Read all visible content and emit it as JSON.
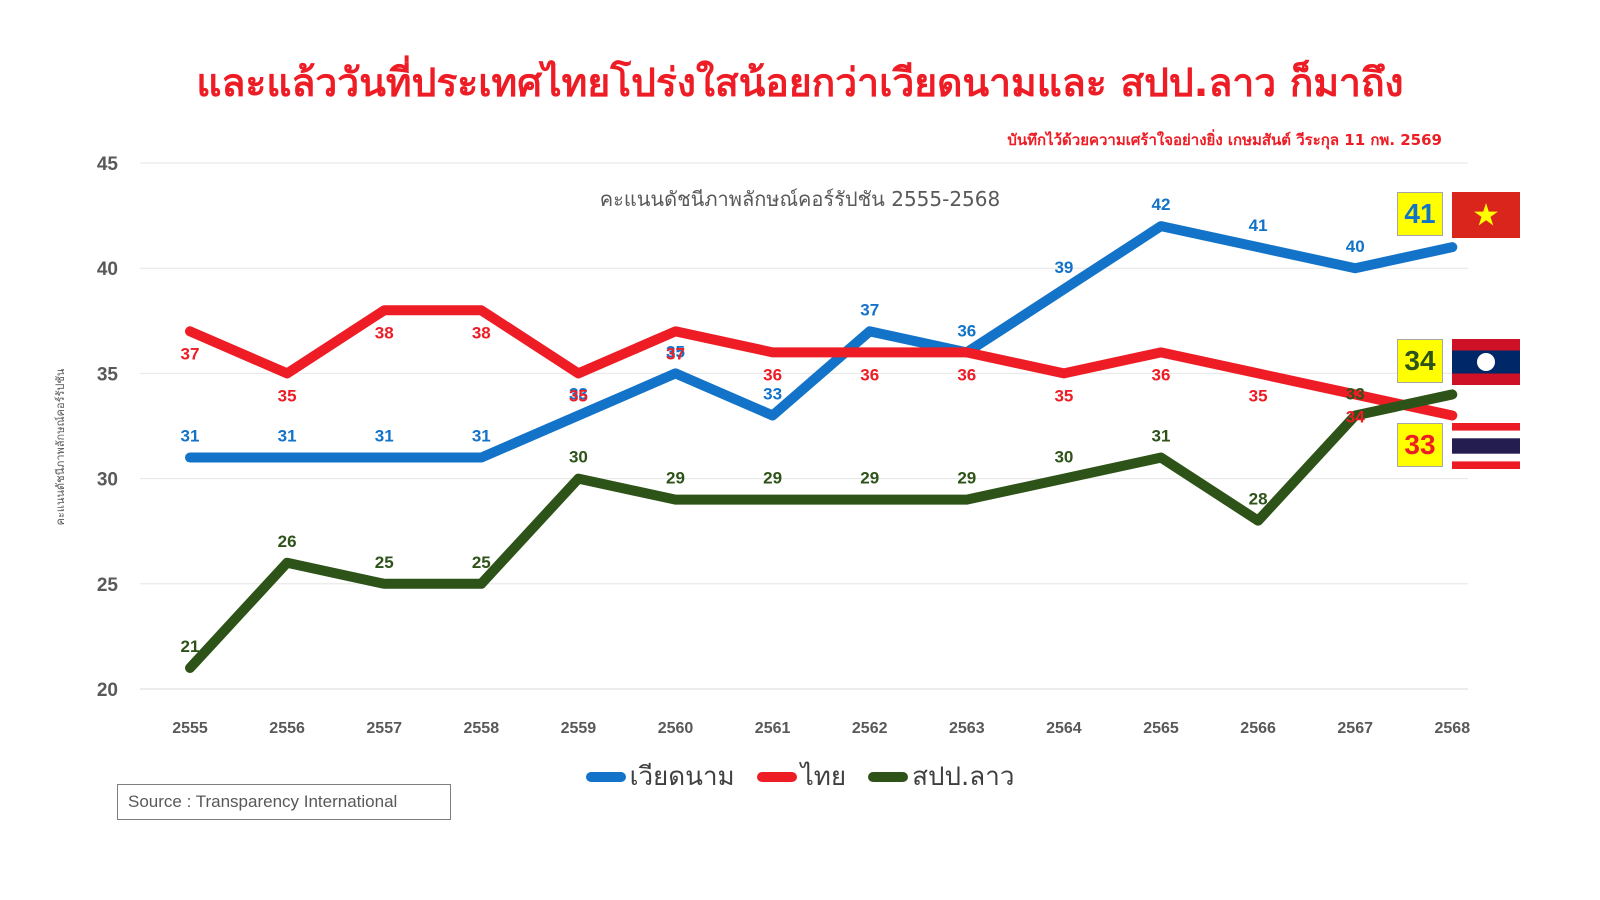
{
  "title": "และแล้ววันที่ประเทศไทยโปร่งใสน้อยกว่าเวียดนามและ สปป.ลาว ก็มาถึง",
  "subtitle": "บันทึกไว้ด้วยความเศร้าใจอย่างยิ่ง เกษมสันต์ วีระกุล 11 กพ. 2569",
  "source": "Source : Transparency International",
  "colors": {
    "vietnam": "#1273c8",
    "thailand": "#ee1c25",
    "laos": "#2d5318",
    "badge": "#ffff00"
  },
  "chart_data": {
    "type": "line",
    "title": "คะแนนดัชนีภาพลักษณ์คอร์รัปชัน 2555-2568",
    "xlabel": "",
    "ylabel": "คะแนนดัชนีภาพลักษณ์คอร์รัปชัน",
    "ylim": [
      20,
      45
    ],
    "yticks": [
      "20",
      "25",
      "30",
      "35",
      "40",
      "45"
    ],
    "categories": [
      "2555",
      "2556",
      "2557",
      "2558",
      "2559",
      "2560",
      "2561",
      "2562",
      "2563",
      "2564",
      "2565",
      "2566",
      "2567",
      "2568"
    ],
    "grid": true,
    "legend": "bottom",
    "series": [
      {
        "name": "เวียดนาม",
        "color": "#1273c8",
        "values": [
          31,
          31,
          31,
          31,
          33,
          35,
          33,
          37,
          36,
          39,
          42,
          41,
          40,
          41
        ]
      },
      {
        "name": "ไทย",
        "color": "#ee1c25",
        "values": [
          37,
          35,
          38,
          38,
          35,
          37,
          36,
          36,
          36,
          35,
          36,
          35,
          34,
          33
        ]
      },
      {
        "name": "สปป.ลาว",
        "color": "#2d5318",
        "values": [
          21,
          26,
          25,
          25,
          30,
          29,
          29,
          29,
          29,
          30,
          31,
          28,
          33,
          34
        ]
      }
    ],
    "end_badges": [
      {
        "label": "41",
        "country": "vietnam",
        "text_color": "#1273c8"
      },
      {
        "label": "34",
        "country": "laos",
        "text_color": "#2d5318"
      },
      {
        "label": "33",
        "country": "thailand",
        "text_color": "#ee1c25"
      }
    ]
  }
}
